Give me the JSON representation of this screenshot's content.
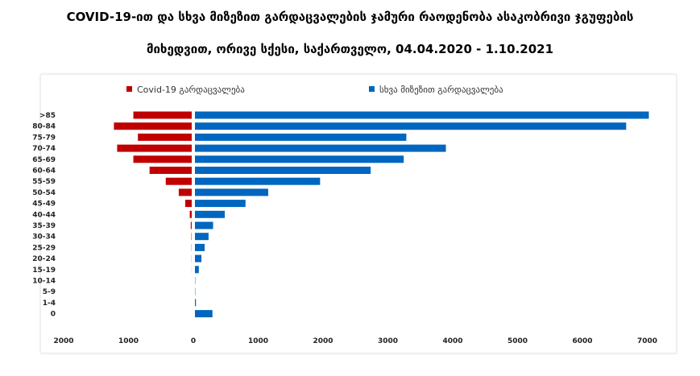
{
  "chart_data": {
    "type": "bar",
    "orientation": "horizontal",
    "layout": "butterfly",
    "title_line_1": "COVID-19-ით და სხვა მიზეზით გარდაცვალების ჯამური რაოდენობა ასაკობრივი ჯგუფების",
    "title_line_2": "მიხედვით, ორივე სქესი, საქართველო, 04.04.2020 - 1.10.2021",
    "categories": [
      ">85",
      "80-84",
      "75-79",
      "70-74",
      "65-69",
      "60-64",
      "55-59",
      "50-54",
      "45-49",
      "40-44",
      "35-39",
      "30-34",
      "25-29",
      "20-24",
      "15-19",
      "10-14",
      "5-9",
      "1-4",
      "0"
    ],
    "series": [
      {
        "name": "Covid-19 გარდაცვალება",
        "color": "#c00000",
        "direction": "left",
        "values": [
          900,
          1200,
          830,
          1150,
          900,
          650,
          400,
          200,
          100,
          30,
          15,
          5,
          3,
          2,
          1,
          0,
          0,
          0,
          0
        ]
      },
      {
        "name": "სხვა მიზეზით გარდაცვალება",
        "color": "#0066bf",
        "direction": "right",
        "values": [
          7000,
          6650,
          3260,
          3870,
          3220,
          2710,
          1930,
          1130,
          780,
          460,
          280,
          210,
          150,
          100,
          60,
          5,
          5,
          15,
          270
        ]
      }
    ],
    "x_axis": {
      "ticks": [
        {
          "value": -2000,
          "label": "2000"
        },
        {
          "value": -1000,
          "label": "1000"
        },
        {
          "value": 0,
          "label": "0"
        },
        {
          "value": 1000,
          "label": "1000"
        },
        {
          "value": 2000,
          "label": "2000"
        },
        {
          "value": 3000,
          "label": "3000"
        },
        {
          "value": 4000,
          "label": "4000"
        },
        {
          "value": 5000,
          "label": "5000"
        },
        {
          "value": 6000,
          "label": "6000"
        },
        {
          "value": 7000,
          "label": "7000"
        }
      ],
      "min": -2000,
      "max": 7000
    },
    "grid": false,
    "legend_position": "top"
  }
}
